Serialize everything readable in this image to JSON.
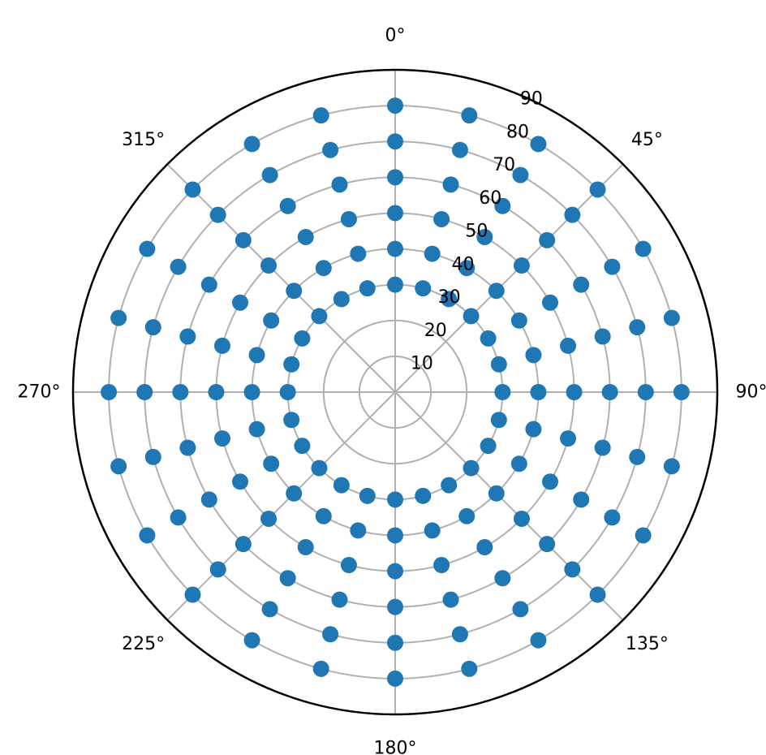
{
  "chart_data": {
    "type": "scatter",
    "projection": "polar",
    "theta_direction": "clockwise",
    "theta_zero_location": "top",
    "r_range": [
      0,
      90
    ],
    "grid": true,
    "marker_color": "#1f77b4",
    "theta_tick_labels": [
      "0°",
      "45°",
      "90°",
      "135°",
      "180°",
      "225°",
      "270°",
      "315°"
    ],
    "theta_tick_values": [
      0,
      45,
      90,
      135,
      180,
      225,
      270,
      315
    ],
    "r_tick_labels": [
      "10",
      "20",
      "30",
      "40",
      "50",
      "60",
      "70",
      "80",
      "90"
    ],
    "r_tick_values": [
      10,
      20,
      30,
      40,
      50,
      60,
      70,
      80,
      90
    ],
    "series": [
      {
        "radii": [
          30,
          40,
          50,
          60,
          70,
          80
        ],
        "angles_deg": [
          0,
          15,
          30,
          45,
          60,
          75,
          90,
          105,
          120,
          135,
          150,
          165,
          180,
          195,
          210,
          225,
          240,
          255,
          270,
          285,
          300,
          315,
          330,
          345
        ]
      }
    ]
  }
}
